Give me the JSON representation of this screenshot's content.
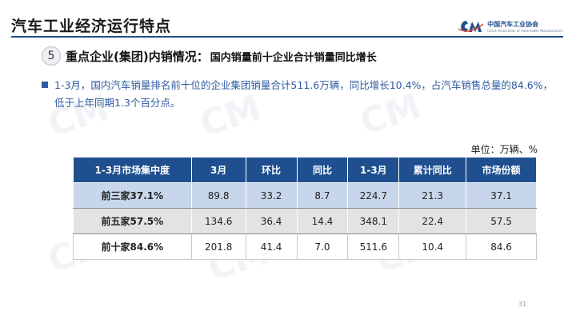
{
  "header": {
    "title": "汽车工业经济运行特点",
    "logo_cn": "中国汽车工业协会",
    "logo_en": "China Association of Automobile Manufacturers",
    "accent_color": "#1f4f8f"
  },
  "section": {
    "number": "5",
    "title": "重点企业(集团)内销情况：",
    "subtitle": "国内销量前十企业合计销量同比增长"
  },
  "bullet": {
    "text": "1-3月，国内汽车销量排名前十位的企业集团销量合计511.6万辆，同比增长10.4%，占汽车销售总量的84.6%，低于上年同期1.3个百分点。"
  },
  "unit_label": "单位：万辆、%",
  "table": {
    "columns": [
      "1-3月市场集中度",
      "3月",
      "环比",
      "同比",
      "1-3月",
      "累计同比",
      "市场份额"
    ],
    "rows": [
      [
        "前三家37.1%",
        "89.8",
        "33.2",
        "8.7",
        "224.7",
        "21.3",
        "37.1"
      ],
      [
        "前五家57.5%",
        "134.6",
        "36.4",
        "14.4",
        "348.1",
        "22.4",
        "57.5"
      ],
      [
        "前十家84.6%",
        "201.8",
        "41.4",
        "7.0",
        "511.6",
        "10.4",
        "84.6"
      ]
    ]
  },
  "page_number": "31"
}
